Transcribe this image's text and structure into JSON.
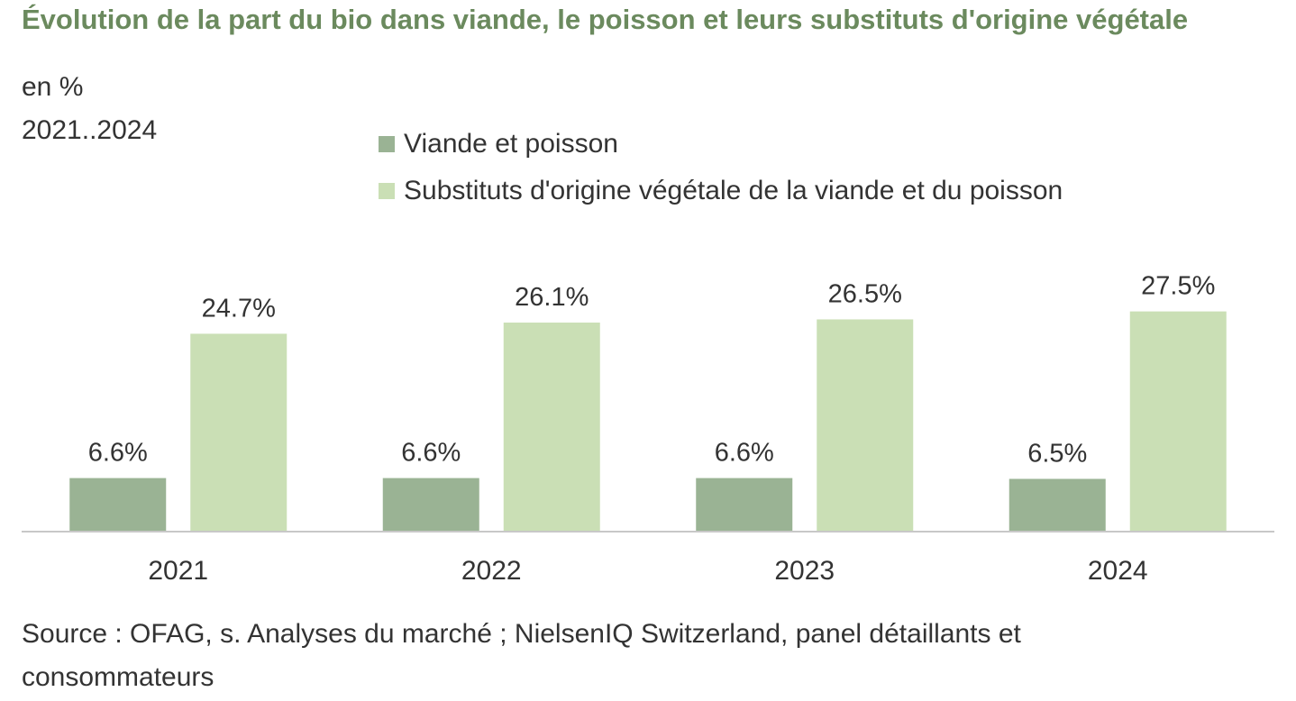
{
  "title": "Évolution de la part du bio dans viande, le poisson et leurs substituts d'origine végétale",
  "unit": "en %",
  "period": "2021..2024",
  "source": "Source : OFAG, s. Analyses du marché ; NielsenIQ Switzerland, panel détaillants et consommateurs",
  "colors": {
    "title": "#6b8a5e",
    "series_1": "#9ab394",
    "series_2": "#cadfb5",
    "axis": "#c8c8c8"
  },
  "chart_data": {
    "type": "bar",
    "categories": [
      "2021",
      "2022",
      "2023",
      "2024"
    ],
    "series": [
      {
        "name": "Viande et poisson",
        "values": [
          6.6,
          6.6,
          6.6,
          6.5
        ],
        "labels": [
          "6.6%",
          "6.6%",
          "6.6%",
          "6.5%"
        ]
      },
      {
        "name": "Substituts d'origine végétale de la viande et du poisson",
        "values": [
          24.7,
          26.1,
          26.5,
          27.5
        ],
        "labels": [
          "24.7%",
          "26.1%",
          "26.5%",
          "27.5%"
        ]
      }
    ],
    "ylim": [
      0,
      30
    ],
    "grid": false,
    "legend": "top"
  }
}
